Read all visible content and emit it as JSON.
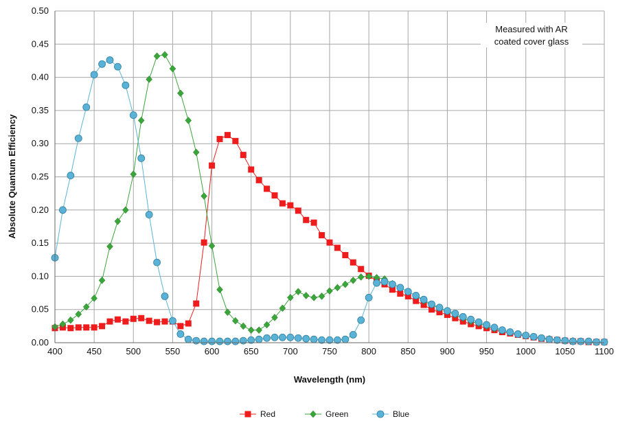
{
  "chart_data": {
    "type": "line",
    "xlabel": "Wavelength (nm)",
    "ylabel": "Absolute Quantum Efficiency",
    "xlim": [
      400,
      1100
    ],
    "ylim": [
      0,
      0.5
    ],
    "x_ticks": [
      400,
      450,
      500,
      550,
      600,
      650,
      700,
      750,
      800,
      850,
      900,
      950,
      1000,
      1050,
      1100
    ],
    "y_ticks": [
      "0.00",
      "0.05",
      "0.10",
      "0.15",
      "0.20",
      "0.25",
      "0.30",
      "0.35",
      "0.40",
      "0.45",
      "0.50"
    ],
    "grid": true,
    "legend_position": "bottom",
    "annotation": [
      "Measured with AR",
      "coated cover glass"
    ],
    "x": [
      400,
      410,
      420,
      430,
      440,
      450,
      460,
      470,
      480,
      490,
      500,
      510,
      520,
      530,
      540,
      550,
      560,
      570,
      580,
      590,
      600,
      610,
      620,
      630,
      640,
      650,
      660,
      670,
      680,
      690,
      700,
      710,
      720,
      730,
      740,
      750,
      760,
      770,
      780,
      790,
      800,
      810,
      820,
      830,
      840,
      850,
      860,
      870,
      880,
      890,
      900,
      910,
      920,
      930,
      940,
      950,
      960,
      970,
      980,
      990,
      1000,
      1010,
      1020,
      1030,
      1040,
      1050,
      1060,
      1070,
      1080,
      1090,
      1100
    ],
    "series": [
      {
        "name": "Red",
        "color": "#ee1c1c",
        "marker": "square",
        "values": [
          0.022,
          0.023,
          0.022,
          0.023,
          0.023,
          0.023,
          0.025,
          0.032,
          0.035,
          0.032,
          0.036,
          0.037,
          0.033,
          0.031,
          0.032,
          0.032,
          0.025,
          0.029,
          0.059,
          0.151,
          0.267,
          0.307,
          0.313,
          0.304,
          0.283,
          0.261,
          0.245,
          0.232,
          0.222,
          0.21,
          0.207,
          0.199,
          0.185,
          0.181,
          0.162,
          0.151,
          0.143,
          0.132,
          0.121,
          0.111,
          0.101,
          0.093,
          0.088,
          0.08,
          0.074,
          0.07,
          0.063,
          0.057,
          0.05,
          0.046,
          0.042,
          0.037,
          0.032,
          0.028,
          0.025,
          0.022,
          0.019,
          0.016,
          0.014,
          0.012,
          0.01,
          0.008,
          0.006,
          0.005,
          0.004,
          0.003,
          0.002,
          0.002,
          0.001,
          0.001,
          0.001
        ]
      },
      {
        "name": "Green",
        "color": "#3aa53a",
        "marker": "diamond",
        "values": [
          0.024,
          0.028,
          0.034,
          0.043,
          0.054,
          0.067,
          0.094,
          0.145,
          0.183,
          0.2,
          0.254,
          0.335,
          0.397,
          0.432,
          0.434,
          0.413,
          0.376,
          0.335,
          0.287,
          0.221,
          0.146,
          0.08,
          0.046,
          0.033,
          0.025,
          0.019,
          0.019,
          0.027,
          0.038,
          0.052,
          0.068,
          0.077,
          0.071,
          0.068,
          0.07,
          0.078,
          0.083,
          0.088,
          0.094,
          0.099,
          0.1,
          0.098,
          0.096,
          0.089,
          0.083,
          0.077,
          0.071,
          0.063,
          0.057,
          0.052,
          0.047,
          0.042,
          0.037,
          0.032,
          0.029,
          0.025,
          0.021,
          0.018,
          0.016,
          0.013,
          0.011,
          0.009,
          0.007,
          0.006,
          0.004,
          0.003,
          0.003,
          0.002,
          0.002,
          0.001,
          0.001
        ]
      },
      {
        "name": "Blue",
        "color": "#5ab3d6",
        "marker": "circle",
        "values": [
          0.128,
          0.2,
          0.252,
          0.308,
          0.355,
          0.404,
          0.42,
          0.426,
          0.416,
          0.388,
          0.343,
          0.278,
          0.193,
          0.121,
          0.07,
          0.033,
          0.013,
          0.005,
          0.003,
          0.002,
          0.002,
          0.002,
          0.002,
          0.002,
          0.003,
          0.004,
          0.005,
          0.007,
          0.008,
          0.008,
          0.008,
          0.007,
          0.006,
          0.005,
          0.004,
          0.004,
          0.004,
          0.005,
          0.012,
          0.034,
          0.068,
          0.09,
          0.092,
          0.088,
          0.083,
          0.077,
          0.071,
          0.065,
          0.058,
          0.053,
          0.048,
          0.044,
          0.039,
          0.035,
          0.031,
          0.027,
          0.023,
          0.019,
          0.016,
          0.013,
          0.011,
          0.009,
          0.007,
          0.005,
          0.004,
          0.003,
          0.002,
          0.002,
          0.002,
          0.001,
          0.001
        ]
      }
    ]
  }
}
